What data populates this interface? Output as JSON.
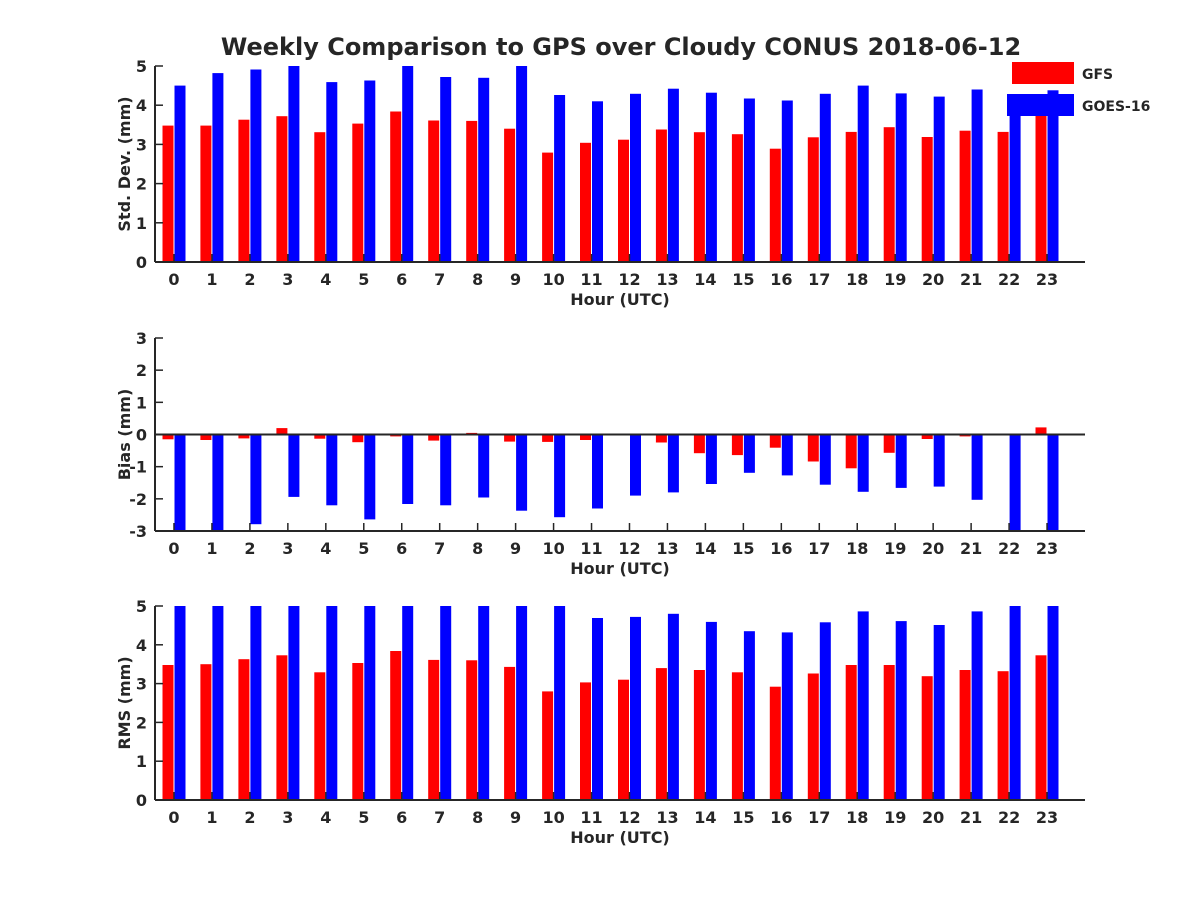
{
  "title": "Weekly Comparison to GPS over Cloudy CONUS 2018-06-12",
  "colors": {
    "GFS": "#ff0000",
    "GOES-16": "#0000ff",
    "axis": "#262626"
  },
  "legend": {
    "placement": "top-right",
    "entries": [
      "GFS",
      "GOES-16"
    ]
  },
  "chart_data": [
    {
      "type": "bar",
      "ylabel": "Std. Dev. (mm)",
      "xlabel": "Hour (UTC)",
      "ylim": [
        0,
        5
      ],
      "yticks": [
        0,
        1,
        2,
        3,
        4,
        5
      ],
      "categories": [
        "0",
        "1",
        "2",
        "3",
        "4",
        "5",
        "6",
        "7",
        "8",
        "9",
        "10",
        "11",
        "12",
        "13",
        "14",
        "15",
        "16",
        "17",
        "18",
        "19",
        "20",
        "21",
        "22",
        "23"
      ],
      "series": [
        {
          "name": "GFS",
          "values": [
            3.48,
            3.48,
            3.63,
            3.72,
            3.31,
            3.53,
            3.84,
            3.61,
            3.6,
            3.4,
            2.79,
            3.04,
            3.12,
            3.38,
            3.31,
            3.26,
            2.89,
            3.18,
            3.32,
            3.44,
            3.19,
            3.35,
            3.32,
            3.8
          ]
        },
        {
          "name": "GOES-16",
          "values": [
            4.5,
            4.82,
            4.91,
            5.0,
            4.59,
            4.63,
            5.0,
            4.72,
            4.7,
            5.0,
            4.26,
            4.1,
            4.29,
            4.42,
            4.32,
            4.17,
            4.12,
            4.29,
            4.5,
            4.3,
            4.22,
            4.4,
            4.0,
            4.38
          ]
        }
      ]
    },
    {
      "type": "bar",
      "ylabel": "Bias (mm)",
      "xlabel": "Hour (UTC)",
      "ylim": [
        -3,
        3
      ],
      "yticks": [
        -3,
        -2,
        -1,
        0,
        1,
        2,
        3
      ],
      "categories": [
        "0",
        "1",
        "2",
        "3",
        "4",
        "5",
        "6",
        "7",
        "8",
        "9",
        "10",
        "11",
        "12",
        "13",
        "14",
        "15",
        "16",
        "17",
        "18",
        "19",
        "20",
        "21",
        "22",
        "23"
      ],
      "series": [
        {
          "name": "GFS",
          "values": [
            -0.15,
            -0.17,
            -0.12,
            0.2,
            -0.13,
            -0.24,
            -0.06,
            -0.19,
            0.05,
            -0.22,
            -0.23,
            -0.17,
            0.0,
            -0.25,
            -0.58,
            -0.64,
            -0.41,
            -0.84,
            -1.05,
            -0.57,
            -0.14,
            -0.06,
            -0.02,
            0.22
          ]
        },
        {
          "name": "GOES-16",
          "values": [
            -3.0,
            -3.0,
            -2.79,
            -1.94,
            -2.2,
            -2.64,
            -2.16,
            -2.2,
            -1.96,
            -2.37,
            -2.57,
            -2.3,
            -1.9,
            -1.8,
            -1.54,
            -1.19,
            -1.27,
            -1.56,
            -1.78,
            -1.66,
            -1.62,
            -2.03,
            -2.98,
            -3.0
          ]
        }
      ]
    },
    {
      "type": "bar",
      "ylabel": "RMS (mm)",
      "xlabel": "Hour (UTC)",
      "ylim": [
        0,
        5
      ],
      "yticks": [
        0,
        1,
        2,
        3,
        4,
        5
      ],
      "categories": [
        "0",
        "1",
        "2",
        "3",
        "4",
        "5",
        "6",
        "7",
        "8",
        "9",
        "10",
        "11",
        "12",
        "13",
        "14",
        "15",
        "16",
        "17",
        "18",
        "19",
        "20",
        "21",
        "22",
        "23"
      ],
      "series": [
        {
          "name": "GFS",
          "values": [
            3.48,
            3.5,
            3.63,
            3.73,
            3.29,
            3.53,
            3.84,
            3.61,
            3.6,
            3.43,
            2.8,
            3.03,
            3.1,
            3.4,
            3.35,
            3.29,
            2.92,
            3.26,
            3.48,
            3.48,
            3.19,
            3.35,
            3.32,
            3.73
          ]
        },
        {
          "name": "GOES-16",
          "values": [
            5.0,
            5.0,
            5.0,
            5.0,
            5.0,
            5.0,
            5.0,
            5.0,
            5.0,
            5.0,
            5.0,
            4.69,
            4.72,
            4.8,
            4.59,
            4.35,
            4.32,
            4.58,
            4.86,
            4.61,
            4.51,
            4.86,
            5.0,
            5.0
          ]
        }
      ]
    }
  ]
}
